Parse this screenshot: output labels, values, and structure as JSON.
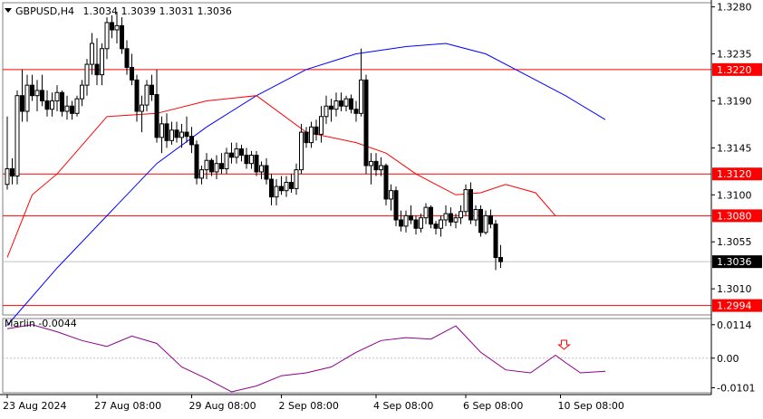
{
  "header": {
    "symbol": "GBPUSD,H4",
    "ohlc": "1.3034 1.3039 1.3031 1.3036"
  },
  "indicator": {
    "label": "Marlin -0.0044"
  },
  "colors": {
    "bull_body": "#ffffff",
    "bear_body": "#000000",
    "candle_outline": "#000000",
    "level_line": "#ff0000",
    "price_tag_bg": "#ff0000",
    "current_tag_bg": "#000000",
    "ma_slow": "#0000ff",
    "ma_fast": "#ff0000",
    "oscillator": "#8b008b",
    "arrow": "#ff0000",
    "axis": "#000000",
    "border": "#808080"
  },
  "chart_data": {
    "type": "candlestick",
    "price_axis": {
      "ticks": [
        "1.3280",
        "1.3235",
        "1.3190",
        "1.3145",
        "1.3100",
        "1.3055",
        "1.3010"
      ],
      "range": [
        1.2985,
        1.3284
      ]
    },
    "oscillator_axis": {
      "ticks": [
        "0.0114",
        "0.00",
        "-0.0101"
      ],
      "range": [
        -0.0118,
        0.0135
      ]
    },
    "time_labels": [
      "23 Aug 2024",
      "27 Aug 08:00",
      "29 Aug 08:00",
      "2 Sep 08:00",
      "4 Sep 08:00",
      "6 Sep 08:00",
      "10 Sep 08:00"
    ],
    "time_label_index": [
      0,
      18,
      37,
      55,
      74,
      92,
      111
    ],
    "levels": [
      {
        "label": "1.3220",
        "value": 1.322
      },
      {
        "label": "1.3120",
        "value": 1.312
      },
      {
        "label": "1.3080",
        "value": 1.308
      },
      {
        "label": "1.2994",
        "value": 1.2994
      }
    ],
    "current_price": {
      "label": "1.3036",
      "value": 1.3036
    },
    "candles": [
      [
        1.311,
        1.3175,
        1.3105,
        1.3125
      ],
      [
        1.3125,
        1.3135,
        1.311,
        1.3118
      ],
      [
        1.3118,
        1.32,
        1.311,
        1.3195
      ],
      [
        1.3195,
        1.322,
        1.317,
        1.318
      ],
      [
        1.318,
        1.3215,
        1.317,
        1.3205
      ],
      [
        1.3205,
        1.3215,
        1.319,
        1.3195
      ],
      [
        1.3195,
        1.321,
        1.318,
        1.32
      ],
      [
        1.32,
        1.3215,
        1.3185,
        1.319
      ],
      [
        1.319,
        1.32,
        1.3175,
        1.3182
      ],
      [
        1.3182,
        1.3198,
        1.3175,
        1.319
      ],
      [
        1.319,
        1.3205,
        1.318,
        1.3198
      ],
      [
        1.3198,
        1.32,
        1.3175,
        1.318
      ],
      [
        1.318,
        1.3195,
        1.3172,
        1.3185
      ],
      [
        1.3185,
        1.319,
        1.3172,
        1.3178
      ],
      [
        1.3178,
        1.3195,
        1.3175,
        1.3192
      ],
      [
        1.3192,
        1.321,
        1.3185,
        1.3205
      ],
      [
        1.3205,
        1.323,
        1.3195,
        1.3225
      ],
      [
        1.3225,
        1.3255,
        1.3215,
        1.3245
      ],
      [
        1.3225,
        1.325,
        1.3205,
        1.3215
      ],
      [
        1.3215,
        1.3245,
        1.3205,
        1.324
      ],
      [
        1.324,
        1.327,
        1.323,
        1.3265
      ],
      [
        1.3265,
        1.3272,
        1.325,
        1.3258
      ],
      [
        1.3258,
        1.3275,
        1.3245,
        1.3262
      ],
      [
        1.3262,
        1.327,
        1.3235,
        1.324
      ],
      [
        1.324,
        1.3248,
        1.3215,
        1.3222
      ],
      [
        1.3222,
        1.3235,
        1.3205,
        1.321
      ],
      [
        1.321,
        1.3215,
        1.317,
        1.318
      ],
      [
        1.318,
        1.3195,
        1.316,
        1.3186
      ],
      [
        1.3186,
        1.321,
        1.318,
        1.3205
      ],
      [
        1.3205,
        1.3215,
        1.319,
        1.3196
      ],
      [
        1.3196,
        1.322,
        1.315,
        1.3155
      ],
      [
        1.3155,
        1.3175,
        1.314,
        1.3168
      ],
      [
        1.3168,
        1.3178,
        1.3145,
        1.3152
      ],
      [
        1.3152,
        1.317,
        1.3148,
        1.3162
      ],
      [
        1.3162,
        1.317,
        1.315,
        1.3155
      ],
      [
        1.3155,
        1.3168,
        1.3145,
        1.316
      ],
      [
        1.316,
        1.3175,
        1.315,
        1.3156
      ],
      [
        1.3156,
        1.3165,
        1.314,
        1.3148
      ],
      [
        1.3148,
        1.3152,
        1.311,
        1.3116
      ],
      [
        1.3116,
        1.3128,
        1.311,
        1.3124
      ],
      [
        1.3124,
        1.314,
        1.3115,
        1.3133
      ],
      [
        1.3133,
        1.3135,
        1.3118,
        1.3122
      ],
      [
        1.3122,
        1.3138,
        1.3115,
        1.313
      ],
      [
        1.313,
        1.314,
        1.312,
        1.3125
      ],
      [
        1.3125,
        1.3145,
        1.312,
        1.314
      ],
      [
        1.314,
        1.315,
        1.313,
        1.3136
      ],
      [
        1.3136,
        1.315,
        1.313,
        1.3144
      ],
      [
        1.3144,
        1.3148,
        1.3132,
        1.3138
      ],
      [
        1.3138,
        1.3145,
        1.3125,
        1.313
      ],
      [
        1.313,
        1.3142,
        1.3125,
        1.3138
      ],
      [
        1.3138,
        1.3142,
        1.3118,
        1.3122
      ],
      [
        1.3122,
        1.3132,
        1.3115,
        1.3128
      ],
      [
        1.3128,
        1.3135,
        1.311,
        1.3115
      ],
      [
        1.3115,
        1.312,
        1.309,
        1.3098
      ],
      [
        1.3098,
        1.3115,
        1.309,
        1.3108
      ],
      [
        1.3108,
        1.3118,
        1.31,
        1.3104
      ],
      [
        1.3104,
        1.3118,
        1.3098,
        1.3112
      ],
      [
        1.3112,
        1.312,
        1.3102,
        1.3106
      ],
      [
        1.3106,
        1.313,
        1.31,
        1.3124
      ],
      [
        1.3124,
        1.3168,
        1.312,
        1.316
      ],
      [
        1.316,
        1.3165,
        1.3145,
        1.315
      ],
      [
        1.315,
        1.317,
        1.3145,
        1.3165
      ],
      [
        1.3165,
        1.3172,
        1.3152,
        1.3158
      ],
      [
        1.3158,
        1.3185,
        1.315,
        1.3175
      ],
      [
        1.3175,
        1.3195,
        1.3168,
        1.3185
      ],
      [
        1.3185,
        1.3192,
        1.317,
        1.3182
      ],
      [
        1.3182,
        1.3198,
        1.3175,
        1.319
      ],
      [
        1.319,
        1.3198,
        1.318,
        1.3185
      ],
      [
        1.3185,
        1.3195,
        1.318,
        1.3192
      ],
      [
        1.3192,
        1.3196,
        1.3178,
        1.3182
      ],
      [
        1.3182,
        1.319,
        1.317,
        1.3178
      ],
      [
        1.3178,
        1.324,
        1.3175,
        1.321
      ],
      [
        1.321,
        1.3215,
        1.312,
        1.3128
      ],
      [
        1.3128,
        1.314,
        1.311,
        1.3132
      ],
      [
        1.3132,
        1.314,
        1.3118,
        1.3124
      ],
      [
        1.3124,
        1.3136,
        1.3118,
        1.3128
      ],
      [
        1.3128,
        1.313,
        1.309,
        1.3096
      ],
      [
        1.3096,
        1.311,
        1.3085,
        1.3104
      ],
      [
        1.3104,
        1.3108,
        1.307,
        1.3076
      ],
      [
        1.3076,
        1.3085,
        1.3065,
        1.307
      ],
      [
        1.307,
        1.3085,
        1.3064,
        1.308
      ],
      [
        1.308,
        1.309,
        1.3072,
        1.3076
      ],
      [
        1.3076,
        1.308,
        1.3062,
        1.3068
      ],
      [
        1.3068,
        1.3082,
        1.3064,
        1.3078
      ],
      [
        1.3078,
        1.3092,
        1.3072,
        1.3088
      ],
      [
        1.3088,
        1.309,
        1.3068,
        1.3072
      ],
      [
        1.3072,
        1.3075,
        1.3062,
        1.3068
      ],
      [
        1.3068,
        1.308,
        1.306,
        1.3076
      ],
      [
        1.3076,
        1.309,
        1.307,
        1.3082
      ],
      [
        1.3082,
        1.3088,
        1.307,
        1.3074
      ],
      [
        1.3074,
        1.3082,
        1.3068,
        1.3078
      ],
      [
        1.3078,
        1.309,
        1.3072,
        1.3084
      ],
      [
        1.3084,
        1.311,
        1.308,
        1.3105
      ],
      [
        1.3105,
        1.3112,
        1.3072,
        1.3076
      ],
      [
        1.3076,
        1.309,
        1.307,
        1.3086
      ],
      [
        1.3086,
        1.309,
        1.306,
        1.3064
      ],
      [
        1.3064,
        1.3085,
        1.3062,
        1.308
      ],
      [
        1.308,
        1.3086,
        1.3068,
        1.3072
      ],
      [
        1.3072,
        1.3076,
        1.3028,
        1.304
      ],
      [
        1.304,
        1.3052,
        1.303,
        1.3036
      ]
    ],
    "ma_slow": [
      [
        0,
        1.2975
      ],
      [
        10,
        1.303
      ],
      [
        20,
        1.308
      ],
      [
        30,
        1.313
      ],
      [
        40,
        1.3165
      ],
      [
        50,
        1.3195
      ],
      [
        60,
        1.322
      ],
      [
        70,
        1.3235
      ],
      [
        80,
        1.3242
      ],
      [
        88,
        1.3245
      ],
      [
        96,
        1.3235
      ],
      [
        104,
        1.3215
      ],
      [
        112,
        1.3195
      ],
      [
        120,
        1.3172
      ]
    ],
    "ma_fast": [
      [
        0,
        1.304
      ],
      [
        5,
        1.31
      ],
      [
        10,
        1.312
      ],
      [
        20,
        1.3175
      ],
      [
        30,
        1.3178
      ],
      [
        40,
        1.319
      ],
      [
        50,
        1.3195
      ],
      [
        60,
        1.316
      ],
      [
        70,
        1.315
      ],
      [
        76,
        1.314
      ],
      [
        82,
        1.312
      ],
      [
        86,
        1.311
      ],
      [
        90,
        1.31
      ],
      [
        95,
        1.3102
      ],
      [
        100,
        1.311
      ],
      [
        106,
        1.3102
      ],
      [
        110,
        1.308
      ]
    ],
    "oscillator": [
      [
        0,
        0.01
      ],
      [
        5,
        0.0114
      ],
      [
        10,
        0.009
      ],
      [
        15,
        0.006
      ],
      [
        20,
        0.004
      ],
      [
        25,
        0.0075
      ],
      [
        30,
        0.005
      ],
      [
        35,
        -0.003
      ],
      [
        40,
        -0.007
      ],
      [
        45,
        -0.0115
      ],
      [
        50,
        -0.0095
      ],
      [
        55,
        -0.006
      ],
      [
        60,
        -0.005
      ],
      [
        65,
        -0.003
      ],
      [
        70,
        0.002
      ],
      [
        75,
        0.006
      ],
      [
        80,
        0.007
      ],
      [
        85,
        0.0065
      ],
      [
        90,
        0.011
      ],
      [
        95,
        0.002
      ],
      [
        100,
        -0.004
      ],
      [
        105,
        -0.005
      ],
      [
        110,
        0.001
      ],
      [
        112,
        -0.0015
      ],
      [
        115,
        -0.005
      ],
      [
        120,
        -0.0045
      ]
    ],
    "signal_marker": {
      "index": 111,
      "direction": "down"
    }
  }
}
